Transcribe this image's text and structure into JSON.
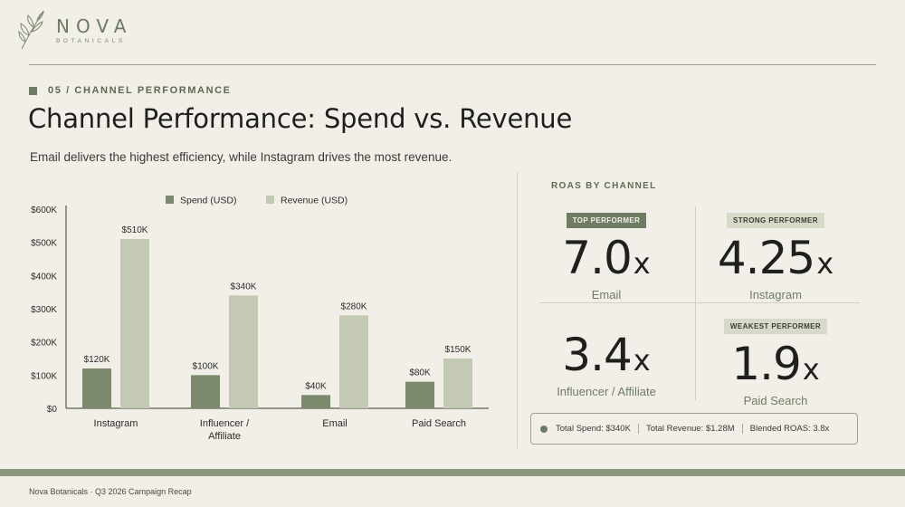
{
  "brand": {
    "name": "NOVA",
    "tagline": "BOTANICALS",
    "logo_icon": "leaf-sprig-icon"
  },
  "section": {
    "eyebrow": "05 / CHANNEL PERFORMANCE"
  },
  "title": "Channel Performance: Spend vs. Revenue",
  "subtitle": "Email delivers the highest efficiency, while Instagram drives the most revenue.",
  "colors": {
    "spend": "#7b8a6c",
    "revenue": "#c4c9b4",
    "accent": "#6f7c64"
  },
  "chart_data": {
    "type": "bar",
    "categories": [
      "Instagram",
      "Influencer / Affiliate",
      "Email",
      "Paid Search"
    ],
    "category_lines": [
      [
        "Instagram"
      ],
      [
        "Influencer /",
        "Affiliate"
      ],
      [
        "Email"
      ],
      [
        "Paid Search"
      ]
    ],
    "series": [
      {
        "name": "Spend (USD)",
        "values": [
          120,
          100,
          40,
          80
        ],
        "labels": [
          "$120K",
          "$100K",
          "$40K",
          "$80K"
        ]
      },
      {
        "name": "Revenue (USD)",
        "values": [
          510,
          340,
          280,
          150
        ],
        "labels": [
          "$510K",
          "$340K",
          "$280K",
          "$150K"
        ]
      }
    ],
    "ylim": [
      0,
      600
    ],
    "yticks": [
      0,
      100,
      200,
      300,
      400,
      500,
      600
    ],
    "ytick_labels": [
      "$0",
      "$100K",
      "$200K",
      "$300K",
      "$400K",
      "$500K",
      "$600K"
    ],
    "legend": "top",
    "grid": false
  },
  "roas": {
    "heading": "ROAS BY CHANNEL",
    "cards": [
      {
        "badge": "TOP PERFORMER",
        "value": "7.0",
        "suffix": "x",
        "label": "Email"
      },
      {
        "badge": "STRONG PERFORMER",
        "value": "4.25",
        "suffix": "x",
        "label": "Instagram"
      },
      {
        "badge": "",
        "value": "3.4",
        "suffix": "x",
        "label": "Influencer / Affiliate"
      },
      {
        "badge": "WEAKEST PERFORMER",
        "value": "1.9",
        "suffix": "x",
        "label": "Paid Search"
      }
    ]
  },
  "totals": {
    "spend": "Total Spend: $340K",
    "revenue": "Total Revenue: $1.28M",
    "roas": "Blended ROAS: 3.8x"
  },
  "footer": "Nova Botanicals · Q3 2026 Campaign Recap"
}
